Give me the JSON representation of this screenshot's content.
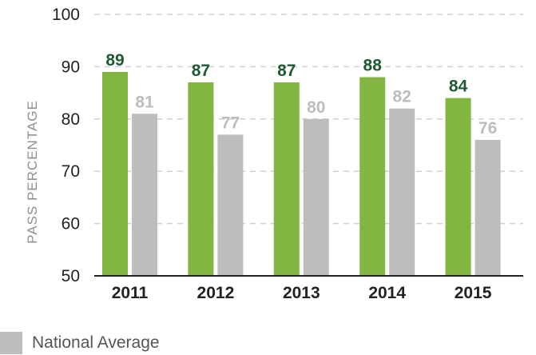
{
  "colors": {
    "series_1": "#82b541",
    "series_2": "#bdbdbd",
    "label_1": "#1e5a32",
    "label_2": "#bdbdbd",
    "grid": "#d0d0d0"
  },
  "legend": [
    {
      "label": "National Average",
      "color": "#bdbdbd"
    }
  ],
  "chart_data": {
    "type": "bar",
    "categories": [
      "2011",
      "2012",
      "2013",
      "2014",
      "2015"
    ],
    "series": [
      {
        "values": [
          89,
          87,
          87,
          88,
          84
        ]
      },
      {
        "name": "National Average",
        "values": [
          81,
          77,
          80,
          82,
          76
        ]
      }
    ],
    "ylabel": "PASS PERCENTAGE",
    "ylim": [
      50,
      100
    ],
    "yticks": [
      50,
      60,
      70,
      80,
      90,
      100
    ],
    "grid": true,
    "grid_style": "dashed horizontal",
    "legend_position": "bottom-left"
  }
}
